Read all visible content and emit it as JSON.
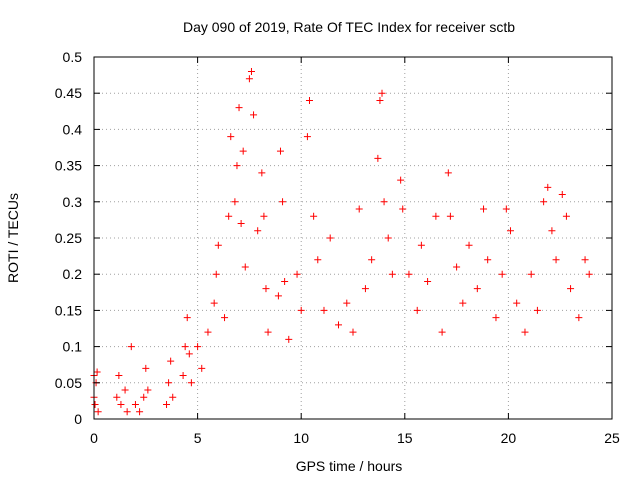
{
  "chart_data": {
    "type": "scatter",
    "title": "Day 090 of 2019, Rate Of TEC Index for receiver sctb",
    "xlabel": "GPS time / hours",
    "ylabel": "ROTI / TECUs",
    "xlim": [
      0,
      25
    ],
    "ylim": [
      0,
      0.5
    ],
    "x_ticks": [
      0,
      5,
      10,
      15,
      20,
      25
    ],
    "x_tick_labels": [
      "0",
      "5",
      "10",
      "15",
      "20",
      "25"
    ],
    "y_ticks": [
      0,
      0.05,
      0.1,
      0.15,
      0.2,
      0.25,
      0.3,
      0.35,
      0.4,
      0.45,
      0.5
    ],
    "y_tick_labels": [
      "0",
      "0.05",
      "0.1",
      "0.15",
      "0.2",
      "0.25",
      "0.3",
      "0.35",
      "0.4",
      "0.45",
      "0.5"
    ],
    "grid": true,
    "marker": "+",
    "color": "#ff0000",
    "series": [
      {
        "values": [
          [
            0.0,
            0.03
          ],
          [
            0.0,
            0.06
          ],
          [
            0.05,
            0.02
          ],
          [
            0.1,
            0.05
          ],
          [
            0.15,
            0.065
          ],
          [
            0.2,
            0.01
          ],
          [
            1.1,
            0.03
          ],
          [
            1.2,
            0.06
          ],
          [
            1.3,
            0.02
          ],
          [
            1.5,
            0.04
          ],
          [
            1.6,
            0.01
          ],
          [
            1.8,
            0.1
          ],
          [
            2.0,
            0.02
          ],
          [
            2.2,
            0.01
          ],
          [
            2.4,
            0.03
          ],
          [
            2.5,
            0.07
          ],
          [
            2.6,
            0.04
          ],
          [
            3.5,
            0.02
          ],
          [
            3.6,
            0.05
          ],
          [
            3.7,
            0.08
          ],
          [
            3.8,
            0.03
          ],
          [
            4.3,
            0.06
          ],
          [
            4.4,
            0.1
          ],
          [
            4.5,
            0.14
          ],
          [
            4.6,
            0.09
          ],
          [
            4.7,
            0.05
          ],
          [
            5.0,
            0.1
          ],
          [
            5.2,
            0.07
          ],
          [
            5.5,
            0.12
          ],
          [
            5.8,
            0.16
          ],
          [
            5.9,
            0.2
          ],
          [
            6.0,
            0.24
          ],
          [
            6.3,
            0.14
          ],
          [
            6.5,
            0.28
          ],
          [
            6.6,
            0.39
          ],
          [
            6.8,
            0.3
          ],
          [
            6.9,
            0.35
          ],
          [
            7.0,
            0.43
          ],
          [
            7.1,
            0.27
          ],
          [
            7.2,
            0.37
          ],
          [
            7.3,
            0.21
          ],
          [
            7.5,
            0.47
          ],
          [
            7.6,
            0.48
          ],
          [
            7.7,
            0.42
          ],
          [
            7.9,
            0.26
          ],
          [
            8.1,
            0.34
          ],
          [
            8.2,
            0.28
          ],
          [
            8.3,
            0.18
          ],
          [
            8.4,
            0.12
          ],
          [
            8.9,
            0.17
          ],
          [
            9.0,
            0.37
          ],
          [
            9.1,
            0.3
          ],
          [
            9.2,
            0.19
          ],
          [
            9.4,
            0.11
          ],
          [
            9.8,
            0.2
          ],
          [
            10.0,
            0.15
          ],
          [
            10.3,
            0.39
          ],
          [
            10.4,
            0.44
          ],
          [
            10.6,
            0.28
          ],
          [
            10.8,
            0.22
          ],
          [
            11.1,
            0.15
          ],
          [
            11.4,
            0.25
          ],
          [
            11.8,
            0.13
          ],
          [
            12.2,
            0.16
          ],
          [
            12.5,
            0.12
          ],
          [
            12.8,
            0.29
          ],
          [
            13.1,
            0.18
          ],
          [
            13.4,
            0.22
          ],
          [
            13.7,
            0.36
          ],
          [
            13.8,
            0.44
          ],
          [
            13.9,
            0.45
          ],
          [
            14.0,
            0.3
          ],
          [
            14.2,
            0.25
          ],
          [
            14.4,
            0.2
          ],
          [
            14.8,
            0.33
          ],
          [
            14.9,
            0.29
          ],
          [
            15.2,
            0.2
          ],
          [
            15.6,
            0.15
          ],
          [
            15.8,
            0.24
          ],
          [
            16.1,
            0.19
          ],
          [
            16.5,
            0.28
          ],
          [
            16.8,
            0.12
          ],
          [
            17.1,
            0.34
          ],
          [
            17.2,
            0.28
          ],
          [
            17.5,
            0.21
          ],
          [
            17.8,
            0.16
          ],
          [
            18.1,
            0.24
          ],
          [
            18.5,
            0.18
          ],
          [
            18.8,
            0.29
          ],
          [
            19.0,
            0.22
          ],
          [
            19.4,
            0.14
          ],
          [
            19.7,
            0.2
          ],
          [
            19.9,
            0.29
          ],
          [
            20.1,
            0.26
          ],
          [
            20.4,
            0.16
          ],
          [
            20.8,
            0.12
          ],
          [
            21.1,
            0.2
          ],
          [
            21.4,
            0.15
          ],
          [
            21.7,
            0.3
          ],
          [
            21.9,
            0.32
          ],
          [
            22.1,
            0.26
          ],
          [
            22.3,
            0.22
          ],
          [
            22.6,
            0.31
          ],
          [
            22.8,
            0.28
          ],
          [
            23.0,
            0.18
          ],
          [
            23.4,
            0.14
          ],
          [
            23.7,
            0.22
          ],
          [
            23.9,
            0.2
          ]
        ]
      }
    ]
  }
}
